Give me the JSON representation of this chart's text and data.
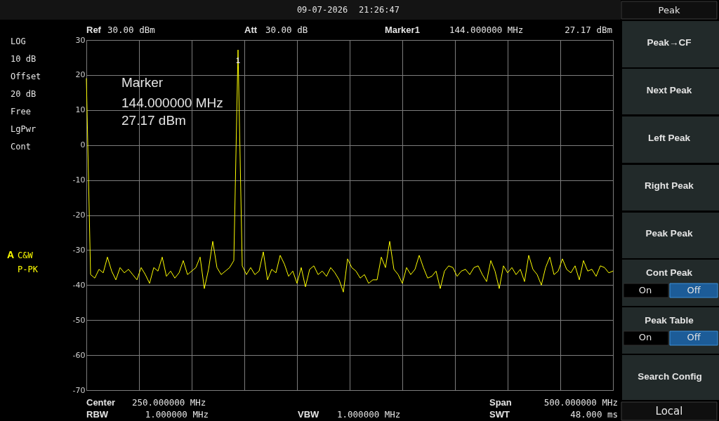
{
  "chart_data": {
    "type": "line",
    "color": "#ffff00",
    "categories": [
      null,
      null,
      null,
      null,
      null,
      null,
      null,
      null,
      null,
      null,
      null,
      null,
      null,
      null,
      null,
      null,
      null,
      null,
      null,
      null,
      null,
      null,
      null,
      null,
      null,
      null,
      null,
      null,
      null,
      null,
      null,
      null,
      null,
      null,
      null,
      null,
      null,
      null,
      null,
      null,
      null,
      null,
      null,
      null,
      null,
      null,
      null,
      null,
      null,
      null,
      null,
      null,
      null,
      null,
      null,
      null,
      null,
      null,
      null,
      null,
      null,
      null,
      null,
      null,
      null,
      null,
      null,
      null,
      null,
      null,
      null,
      null,
      null,
      null,
      null,
      null,
      null,
      null,
      null,
      null,
      null,
      null,
      null,
      null,
      null,
      null,
      null,
      null,
      null,
      null,
      null,
      null,
      null,
      null,
      null,
      null,
      null,
      null,
      null,
      null,
      null,
      null,
      null,
      null,
      null,
      null,
      null,
      null,
      null,
      null,
      null,
      null,
      null,
      null,
      null,
      null,
      null,
      null,
      null,
      null,
      null,
      null,
      null,
      null,
      null,
      null
    ],
    "values": [
      19,
      -37,
      -38,
      -35.5,
      -36.5,
      -32,
      -36,
      -38.5,
      -35,
      -36.5,
      -35.5,
      -37,
      -38.5,
      -35,
      -37,
      -39.5,
      -35,
      -36,
      -32,
      -37.5,
      -36,
      -38,
      -36.5,
      -33,
      -37,
      -36,
      -35,
      -32,
      -41,
      -35.5,
      -27.5,
      -35,
      -37,
      -36,
      -35,
      -33,
      27.17,
      -34.5,
      -37,
      -35,
      -37,
      -36,
      -30.5,
      -38.5,
      -35.5,
      -36.5,
      -31.5,
      -34,
      -37.5,
      -36,
      -39.5,
      -35,
      -40.5,
      -35.5,
      -34.5,
      -37,
      -36,
      -37.5,
      -35,
      -36.5,
      -38.5,
      -42,
      -32.5,
      -35,
      -36,
      -38,
      -37,
      -39.5,
      -38.5,
      -38.5,
      -32,
      -35,
      -27.5,
      -35.5,
      -37,
      -39.5,
      -35,
      -37,
      -35.5,
      -31.5,
      -35,
      -38,
      -37.5,
      -36,
      -41,
      -36,
      -34.5,
      -35,
      -37.5,
      -36,
      -35.5,
      -37,
      -35,
      -34.5,
      -37,
      -39,
      -33,
      -36,
      -41,
      -34.5,
      -36.5,
      -35,
      -37,
      -35.5,
      -39,
      -31.5,
      -35.5,
      -37,
      -40,
      -35,
      -32,
      -37,
      -36,
      -32.5,
      -35.5,
      -36.5,
      -34.5,
      -38.5,
      -33,
      -36,
      -35.5,
      -37.5,
      -34.5,
      -35,
      -36.5,
      -36
    ],
    "ylim": [
      -70,
      30
    ],
    "yticks": [
      -70,
      -60,
      -50,
      -40,
      -30,
      -20,
      -10,
      0,
      10,
      20,
      30
    ],
    "grid": true,
    "annotations": [
      "09-07-2026",
      "21:26:47",
      "Ref",
      "30.00 dBm",
      "Att",
      "30.00 dB",
      "Marker1",
      "144.000000 MHz",
      "27.17 dBm",
      "LOG",
      "10 dB",
      "Offset",
      "20 dB",
      "Free",
      "LgPwr",
      "Cont",
      "A",
      "C&W",
      "P-PK",
      "Marker",
      "144.000000 MHz",
      "27.17 dBm",
      "Center",
      "250.000000 MHz",
      "RBW",
      "1.000000 MHz",
      "VBW",
      "1.000000 MHz",
      "Span",
      "500.000000 MHz",
      "SWT",
      "48.000 ms",
      "Peak",
      "Peak→CF",
      "Next Peak",
      "Left Peak",
      "Right Peak",
      "Peak Peak",
      "Cont Peak",
      "On",
      "Off",
      "Peak Table",
      "On",
      "Off",
      "Search Config",
      "Local",
      {
        "text": "1",
        "y": 27.17
      }
    ]
  }
}
